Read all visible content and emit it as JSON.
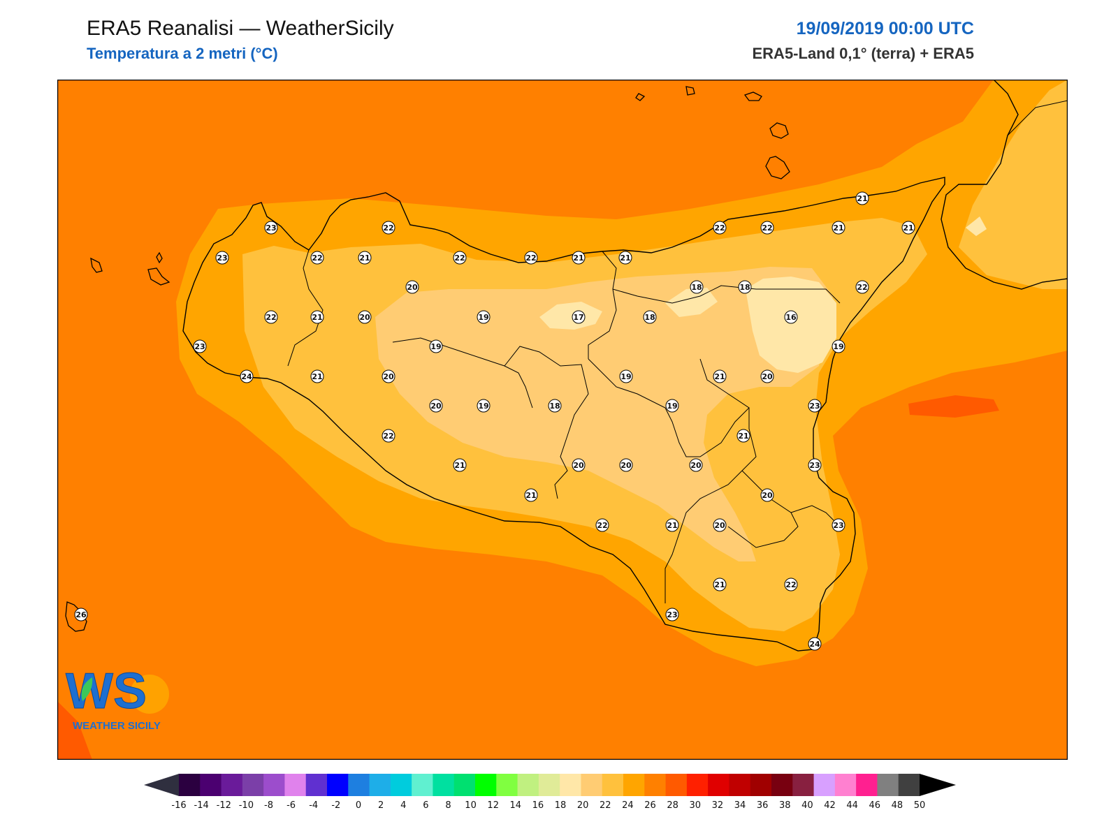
{
  "header": {
    "title": "ERA5 Reanalisi — WeatherSicily",
    "subtitle": "Temperatura a 2 metri (°C)",
    "datetime": "19/09/2019 00:00 UTC",
    "source": "ERA5-Land 0,1° (terra) + ERA5"
  },
  "logo": {
    "letters": "WS",
    "text": "WEATHER SICILY"
  },
  "colors": {
    "sea": "#ff8000",
    "c22": "#ffa500",
    "c20": "#ffc13d",
    "c18": "#ffcc73",
    "c16": "#ffe7a8",
    "c26": "#ff5a00",
    "coast": "#000000"
  },
  "stations": [
    {
      "v": "23"
    },
    {
      "v": "22"
    },
    {
      "v": "23"
    },
    {
      "v": "22"
    },
    {
      "v": "21"
    },
    {
      "v": "22"
    },
    {
      "v": "22"
    },
    {
      "v": "21"
    },
    {
      "v": "21"
    },
    {
      "v": "22"
    },
    {
      "v": "22"
    },
    {
      "v": "21"
    },
    {
      "v": "21"
    },
    {
      "v": "21"
    },
    {
      "v": "20"
    },
    {
      "v": "18"
    },
    {
      "v": "18"
    },
    {
      "v": "22"
    },
    {
      "v": "22"
    },
    {
      "v": "21"
    },
    {
      "v": "20"
    },
    {
      "v": "19"
    },
    {
      "v": "17"
    },
    {
      "v": "18"
    },
    {
      "v": "16"
    },
    {
      "v": "23"
    },
    {
      "v": "19"
    },
    {
      "v": "19"
    },
    {
      "v": "24"
    },
    {
      "v": "21"
    },
    {
      "v": "20"
    },
    {
      "v": "19"
    },
    {
      "v": "21"
    },
    {
      "v": "20"
    },
    {
      "v": "20"
    },
    {
      "v": "19"
    },
    {
      "v": "18"
    },
    {
      "v": "19"
    },
    {
      "v": "23"
    },
    {
      "v": "22"
    },
    {
      "v": "21"
    },
    {
      "v": "21"
    },
    {
      "v": "20"
    },
    {
      "v": "20"
    },
    {
      "v": "20"
    },
    {
      "v": "23"
    },
    {
      "v": "21"
    },
    {
      "v": "20"
    },
    {
      "v": "22"
    },
    {
      "v": "21"
    },
    {
      "v": "20"
    },
    {
      "v": "23"
    },
    {
      "v": "21"
    },
    {
      "v": "22"
    },
    {
      "v": "23"
    },
    {
      "v": "26"
    },
    {
      "v": "24"
    }
  ],
  "colorbar": {
    "ticks": [
      "-16",
      "-14",
      "-12",
      "-10",
      "-8",
      "-6",
      "-4",
      "-2",
      "0",
      "2",
      "4",
      "6",
      "8",
      "10",
      "12",
      "14",
      "16",
      "18",
      "20",
      "22",
      "24",
      "26",
      "28",
      "30",
      "32",
      "34",
      "36",
      "38",
      "40",
      "42",
      "44",
      "46",
      "48",
      "50"
    ],
    "colors": [
      "#2b0040",
      "#4b0070",
      "#6a1b9a",
      "#7b3fa8",
      "#9c4dcc",
      "#e082ec",
      "#6030d0",
      "#0000ff",
      "#1e7fe0",
      "#1eaee8",
      "#00ccdd",
      "#60f0d0",
      "#00e0a0",
      "#00e070",
      "#00ff00",
      "#80ff40",
      "#c0f080",
      "#e0eb98",
      "#ffe7a8",
      "#ffcc73",
      "#ffc13d",
      "#ffa500",
      "#ff8000",
      "#ff5a00",
      "#ff2000",
      "#e00000",
      "#c00000",
      "#a00000",
      "#780010",
      "#882040",
      "#d8a0ff",
      "#ff80d0",
      "#ff2090",
      "#808080",
      "#404040"
    ],
    "under_color": "#2f2f3f",
    "over_color": "#000000"
  }
}
